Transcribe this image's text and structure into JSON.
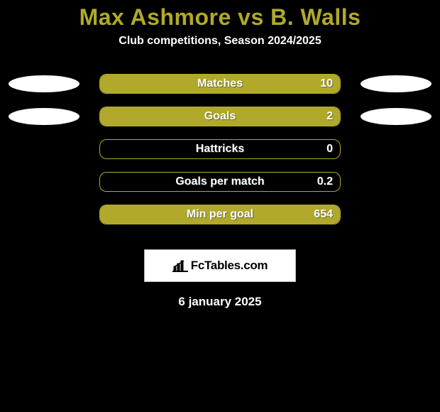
{
  "background_color": "#000000",
  "header": {
    "title_prefix": "Max Ashmore",
    "title_vs": " vs ",
    "title_suffix": "B. Walls",
    "title_color": "#b0a92b",
    "title_fontsize": 32,
    "subtitle": "Club competitions, Season 2024/2025",
    "subtitle_color": "#ffffff",
    "subtitle_fontsize": 16
  },
  "stats": {
    "pill_border_color": "#b0a92b",
    "pill_fill_color": "#b0a92b",
    "pill_bg_color": "transparent",
    "label_color": "#ffffff",
    "value_color": "#ffffff",
    "label_fontsize": 16,
    "ellipse_color": "#ffffff",
    "rows": [
      {
        "label": "Matches",
        "value": "10",
        "fill_pct": 100,
        "left_ellipse": true,
        "right_ellipse": true
      },
      {
        "label": "Goals",
        "value": "2",
        "fill_pct": 100,
        "left_ellipse": true,
        "right_ellipse": true
      },
      {
        "label": "Hattricks",
        "value": "0",
        "fill_pct": 0,
        "left_ellipse": false,
        "right_ellipse": false
      },
      {
        "label": "Goals per match",
        "value": "0.2",
        "fill_pct": 0,
        "left_ellipse": false,
        "right_ellipse": false
      },
      {
        "label": "Min per goal",
        "value": "654",
        "fill_pct": 100,
        "left_ellipse": false,
        "right_ellipse": false
      }
    ]
  },
  "logo": {
    "text": "FcTables.com",
    "text_color": "#000000",
    "box_bg": "#ffffff",
    "box_border": "#b3b3b3",
    "icon_color": "#000000"
  },
  "date": {
    "text": "6 january 2025",
    "color": "#ffffff",
    "fontsize": 17
  }
}
